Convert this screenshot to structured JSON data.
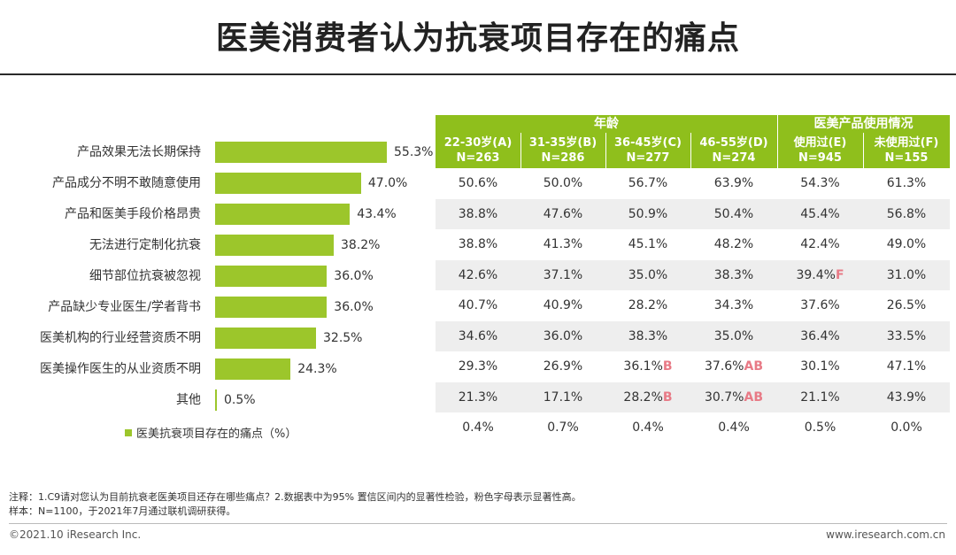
{
  "title": "医美消费者认为抗衰项目存在的痛点",
  "chart_data": {
    "type": "bar",
    "orientation": "horizontal",
    "categories": [
      "产品效果无法长期保持",
      "产品成分不明不敢随意使用",
      "产品和医美手段价格昂贵",
      "无法进行定制化抗衰",
      "细节部位抗衰被忽视",
      "产品缺少专业医生/学者背书",
      "医美机构的行业经营资质不明",
      "医美操作医生的从业资质不明",
      "其他"
    ],
    "values": [
      55.3,
      47.0,
      43.4,
      38.2,
      36.0,
      36.0,
      32.5,
      24.3,
      0.5
    ],
    "value_labels": [
      "55.3%",
      "47.0%",
      "43.4%",
      "38.2%",
      "36.0%",
      "36.0%",
      "32.5%",
      "24.3%",
      "0.5%"
    ],
    "legend": "医美抗衰项目存在的痛点（%）",
    "color": "#9cc62b"
  },
  "table": {
    "group_headers": [
      "年龄",
      "医美产品使用情况"
    ],
    "columns": [
      {
        "label": "22-30岁(A)",
        "n": "N=263"
      },
      {
        "label": "31-35岁(B)",
        "n": "N=286"
      },
      {
        "label": "36-45岁(C)",
        "n": "N=277"
      },
      {
        "label": "46-55岁(D)",
        "n": "N=274"
      },
      {
        "label": "使用过(E)",
        "n": "N=945"
      },
      {
        "label": "未使用过(F)",
        "n": "N=155"
      }
    ],
    "rows": [
      [
        {
          "v": "50.6%"
        },
        {
          "v": "50.0%"
        },
        {
          "v": "56.7%"
        },
        {
          "v": "63.9%"
        },
        {
          "v": "54.3%"
        },
        {
          "v": "61.3%"
        }
      ],
      [
        {
          "v": "38.8%"
        },
        {
          "v": "47.6%"
        },
        {
          "v": "50.9%"
        },
        {
          "v": "50.4%"
        },
        {
          "v": "45.4%"
        },
        {
          "v": "56.8%"
        }
      ],
      [
        {
          "v": "38.8%"
        },
        {
          "v": "41.3%"
        },
        {
          "v": "45.1%"
        },
        {
          "v": "48.2%"
        },
        {
          "v": "42.4%"
        },
        {
          "v": "49.0%"
        }
      ],
      [
        {
          "v": "42.6%"
        },
        {
          "v": "37.1%"
        },
        {
          "v": "35.0%"
        },
        {
          "v": "38.3%"
        },
        {
          "v": "39.4%",
          "m": "F"
        },
        {
          "v": "31.0%"
        }
      ],
      [
        {
          "v": "40.7%"
        },
        {
          "v": "40.9%"
        },
        {
          "v": "28.2%"
        },
        {
          "v": "34.3%"
        },
        {
          "v": "37.6%"
        },
        {
          "v": "26.5%"
        }
      ],
      [
        {
          "v": "34.6%"
        },
        {
          "v": "36.0%"
        },
        {
          "v": "38.3%"
        },
        {
          "v": "35.0%"
        },
        {
          "v": "36.4%"
        },
        {
          "v": "33.5%"
        }
      ],
      [
        {
          "v": "29.3%"
        },
        {
          "v": "26.9%"
        },
        {
          "v": "36.1%",
          "m": "B"
        },
        {
          "v": "37.6%",
          "m": "AB"
        },
        {
          "v": "30.1%"
        },
        {
          "v": "47.1%"
        }
      ],
      [
        {
          "v": "21.3%"
        },
        {
          "v": "17.1%"
        },
        {
          "v": "28.2%",
          "m": "B"
        },
        {
          "v": "30.7%",
          "m": "AB"
        },
        {
          "v": "21.1%"
        },
        {
          "v": "43.9%"
        }
      ],
      [
        {
          "v": "0.4%"
        },
        {
          "v": "0.7%"
        },
        {
          "v": "0.4%"
        },
        {
          "v": "0.4%"
        },
        {
          "v": "0.5%"
        },
        {
          "v": "0.0%"
        }
      ]
    ]
  },
  "notes": {
    "line1": "注释：1.C9请对您认为目前抗衰老医美项目还存在哪些痛点？2.数据表中为95% 置信区间内的显著性检验，粉色字母表示显著性高。",
    "line2": "样本：N=1100，于2021年7月通过联机调研获得。"
  },
  "footer": {
    "copyright": "©2021.10 iResearch Inc.",
    "website": "www.iresearch.com.cn"
  }
}
